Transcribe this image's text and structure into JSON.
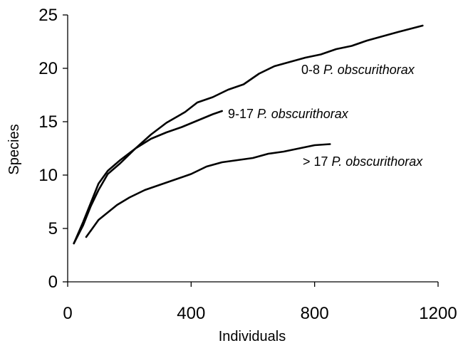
{
  "chart_data": {
    "type": "line",
    "title": "",
    "xlabel": "Individuals",
    "ylabel": "Species",
    "xlim": [
      0,
      1200
    ],
    "ylim": [
      0,
      25
    ],
    "xticks": [
      0,
      400,
      800,
      1200
    ],
    "yticks": [
      0,
      5,
      10,
      15,
      20,
      25
    ],
    "grid": false,
    "series": [
      {
        "name": "0-8 P. obscurithorax",
        "label_prefix": "0-8 ",
        "label_italic": "P. obscurithorax",
        "x": [
          20,
          50,
          75,
          100,
          130,
          170,
          220,
          270,
          320,
          380,
          420,
          470,
          520,
          570,
          620,
          670,
          720,
          770,
          820,
          870,
          920,
          970,
          1020,
          1070,
          1110,
          1150
        ],
        "y": [
          3.6,
          5.3,
          7.1,
          8.6,
          10.1,
          11.1,
          12.5,
          13.8,
          14.9,
          15.9,
          16.8,
          17.3,
          18.0,
          18.5,
          19.5,
          20.2,
          20.6,
          21.0,
          21.3,
          21.8,
          22.1,
          22.6,
          23.0,
          23.4,
          23.7,
          24.0
        ]
      },
      {
        "name": "9-17 P. obscurithorax",
        "label_prefix": "9-17 ",
        "label_italic": "P. obscurithorax",
        "x": [
          20,
          50,
          75,
          100,
          130,
          170,
          220,
          270,
          320,
          370,
          420,
          470,
          500
        ],
        "y": [
          3.6,
          5.6,
          7.4,
          9.2,
          10.4,
          11.4,
          12.5,
          13.4,
          14.0,
          14.5,
          15.1,
          15.7,
          16.0
        ]
      },
      {
        "name": "> 17 P. obscurithorax",
        "label_prefix": "> 17 ",
        "label_italic": "P. obscurithorax",
        "x": [
          60,
          80,
          100,
          130,
          160,
          200,
          250,
          300,
          350,
          400,
          450,
          500,
          550,
          600,
          650,
          700,
          750,
          800,
          850
        ],
        "y": [
          4.2,
          5.0,
          5.8,
          6.5,
          7.2,
          7.9,
          8.6,
          9.1,
          9.6,
          10.1,
          10.8,
          11.2,
          11.4,
          11.6,
          12.0,
          12.2,
          12.5,
          12.8,
          12.9
        ]
      }
    ]
  }
}
